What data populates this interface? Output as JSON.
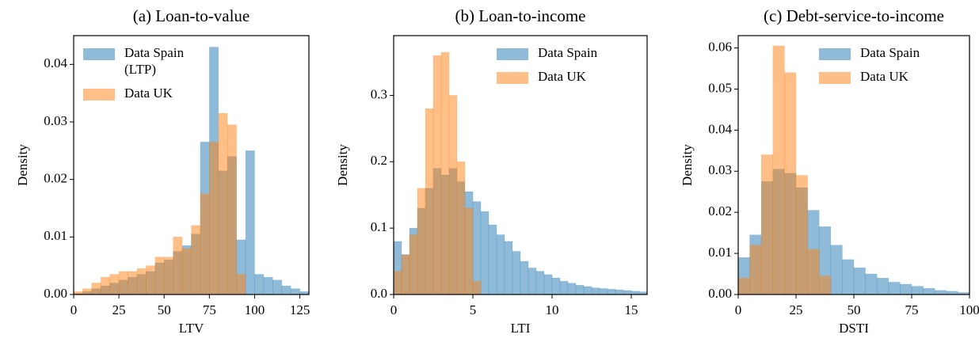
{
  "chart_data": [
    {
      "type": "histogram",
      "title": "(a) Loan-to-value",
      "xlabel": "LTV",
      "ylabel": "Density",
      "bins": [
        0,
        5,
        10,
        15,
        20,
        25,
        30,
        35,
        40,
        45,
        50,
        55,
        60,
        65,
        70,
        75,
        80,
        85,
        90,
        95,
        100,
        105,
        110,
        115,
        120,
        125,
        130
      ],
      "series": [
        {
          "name": "Data Spain\n(LTP)",
          "color": "#1f77b4",
          "values": [
            0.0002,
            0.0005,
            0.001,
            0.0015,
            0.002,
            0.0025,
            0.003,
            0.0035,
            0.004,
            0.0055,
            0.006,
            0.0075,
            0.0085,
            0.0105,
            0.0265,
            0.043,
            0.0215,
            0.024,
            0.0095,
            0.025,
            0.0035,
            0.003,
            0.0025,
            0.0015,
            0.001,
            0.0005
          ]
        },
        {
          "name": "Data UK",
          "color": "#ff7f0e",
          "values": [
            0.0005,
            0.001,
            0.002,
            0.003,
            0.0035,
            0.004,
            0.004,
            0.0045,
            0.005,
            0.0065,
            0.0065,
            0.01,
            0.008,
            0.012,
            0.0175,
            0.0265,
            0.0315,
            0.0295,
            0.0035,
            0,
            0,
            0,
            0,
            0,
            0,
            0
          ]
        }
      ],
      "alpha": 0.5,
      "legend": "upper left",
      "xlim": [
        0,
        130
      ],
      "ylim": [
        0,
        0.045
      ],
      "xticks": [
        0,
        25,
        50,
        75,
        100,
        125
      ],
      "yticks": [
        {
          "value": 0,
          "label": "0.00"
        },
        {
          "value": 0.01,
          "label": "0.01"
        },
        {
          "value": 0.02,
          "label": "0.02"
        },
        {
          "value": 0.03,
          "label": "0.03"
        },
        {
          "value": 0.04,
          "label": "0.04"
        }
      ]
    },
    {
      "type": "histogram",
      "title": "(b) Loan-to-income",
      "xlabel": "LTI",
      "ylabel": "Density",
      "bins": [
        0,
        0.5,
        1,
        1.5,
        2,
        2.5,
        3,
        3.5,
        4,
        4.5,
        5,
        5.5,
        6,
        6.5,
        7,
        7.5,
        8,
        8.5,
        9,
        9.5,
        10,
        10.5,
        11,
        11.5,
        12,
        12.5,
        13,
        13.5,
        14,
        14.5,
        15,
        15.5,
        16
      ],
      "series": [
        {
          "name": "Data Spain",
          "color": "#1f77b4",
          "values": [
            0.08,
            0.06,
            0.1,
            0.13,
            0.16,
            0.19,
            0.18,
            0.19,
            0.17,
            0.155,
            0.14,
            0.125,
            0.105,
            0.09,
            0.08,
            0.065,
            0.05,
            0.04,
            0.035,
            0.03,
            0.025,
            0.02,
            0.017,
            0.014,
            0.012,
            0.01,
            0.009,
            0.008,
            0.007,
            0.006,
            0.005,
            0.004
          ]
        },
        {
          "name": "Data UK",
          "color": "#ff7f0e",
          "values": [
            0.035,
            0.06,
            0.09,
            0.16,
            0.28,
            0.36,
            0.365,
            0.3,
            0.2,
            0.13,
            0.02,
            0,
            0,
            0,
            0,
            0,
            0,
            0,
            0,
            0,
            0,
            0,
            0,
            0,
            0,
            0,
            0,
            0,
            0,
            0,
            0,
            0
          ]
        }
      ],
      "alpha": 0.5,
      "legend": "upper right",
      "xlim": [
        0,
        16
      ],
      "ylim": [
        0,
        0.39
      ],
      "xticks": [
        0,
        5,
        10,
        15
      ],
      "yticks": [
        {
          "value": 0,
          "label": "0.0"
        },
        {
          "value": 0.1,
          "label": "0.1"
        },
        {
          "value": 0.2,
          "label": "0.2"
        },
        {
          "value": 0.3,
          "label": "0.3"
        }
      ]
    },
    {
      "type": "histogram",
      "title": "(c) Debt-service-to-income",
      "xlabel": "DSTI",
      "ylabel": "Density",
      "bins": [
        0,
        5,
        10,
        15,
        20,
        25,
        30,
        35,
        40,
        45,
        50,
        55,
        60,
        65,
        70,
        75,
        80,
        85,
        90,
        95,
        100
      ],
      "series": [
        {
          "name": "Data Spain",
          "color": "#1f77b4",
          "values": [
            0.009,
            0.0145,
            0.0275,
            0.0305,
            0.0295,
            0.026,
            0.0205,
            0.0165,
            0.012,
            0.0085,
            0.0065,
            0.005,
            0.004,
            0.003,
            0.0025,
            0.002,
            0.0015,
            0.001,
            0.0008,
            0.0005
          ]
        },
        {
          "name": "Data UK",
          "color": "#ff7f0e",
          "values": [
            0.004,
            0.012,
            0.034,
            0.0605,
            0.054,
            0.029,
            0.011,
            0.0045,
            0,
            0,
            0,
            0,
            0,
            0,
            0,
            0,
            0,
            0,
            0,
            0
          ]
        }
      ],
      "alpha": 0.5,
      "legend": "upper right",
      "xlim": [
        0,
        100
      ],
      "ylim": [
        0,
        0.063
      ],
      "xticks": [
        0,
        25,
        50,
        75,
        100
      ],
      "yticks": [
        {
          "value": 0,
          "label": "0.00"
        },
        {
          "value": 0.01,
          "label": "0.01"
        },
        {
          "value": 0.02,
          "label": "0.02"
        },
        {
          "value": 0.03,
          "label": "0.03"
        },
        {
          "value": 0.04,
          "label": "0.04"
        },
        {
          "value": 0.05,
          "label": "0.05"
        },
        {
          "value": 0.06,
          "label": "0.06"
        }
      ]
    }
  ]
}
